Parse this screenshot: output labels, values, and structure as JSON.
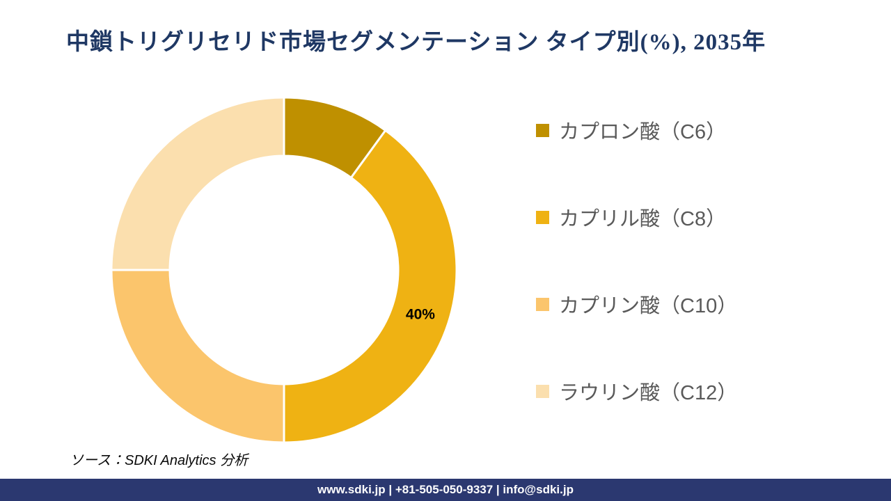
{
  "title": "中鎖トリグリセリド市場セグメンテーション タイプ別(%), 2035年",
  "chart_data": {
    "type": "pie",
    "subtype": "donut",
    "title": "中鎖トリグリセリド市場セグメンテーション タイプ別(%), 2035年",
    "start_angle_deg": 0,
    "direction": "clockwise",
    "donut_hole_ratio": 0.66,
    "legend_position": "right",
    "visible_data_labels": [
      "40%"
    ],
    "slices": [
      {
        "label": "カプロン酸（C6）",
        "value": 10,
        "color": "#BF9000",
        "show_label": false
      },
      {
        "label": "カプリル酸（C8）",
        "value": 40,
        "color": "#EFB213",
        "show_label": true
      },
      {
        "label": "カプリン酸（C10）",
        "value": 25,
        "color": "#FBC56C",
        "show_label": false
      },
      {
        "label": "ラウリン酸（C12）",
        "value": 25,
        "color": "#FBDFAE",
        "show_label": false
      }
    ]
  },
  "source_note": "ソース：SDKI Analytics 分析",
  "footer": {
    "text": "www.sdki.jp | +81-505-050-9337 | info@sdki.jp",
    "background": "#2B3870"
  },
  "colors": {
    "title_text": "#1F3864",
    "legend_text": "#595959",
    "data_label_text": "#000000",
    "separator": "#FFFFFF"
  }
}
